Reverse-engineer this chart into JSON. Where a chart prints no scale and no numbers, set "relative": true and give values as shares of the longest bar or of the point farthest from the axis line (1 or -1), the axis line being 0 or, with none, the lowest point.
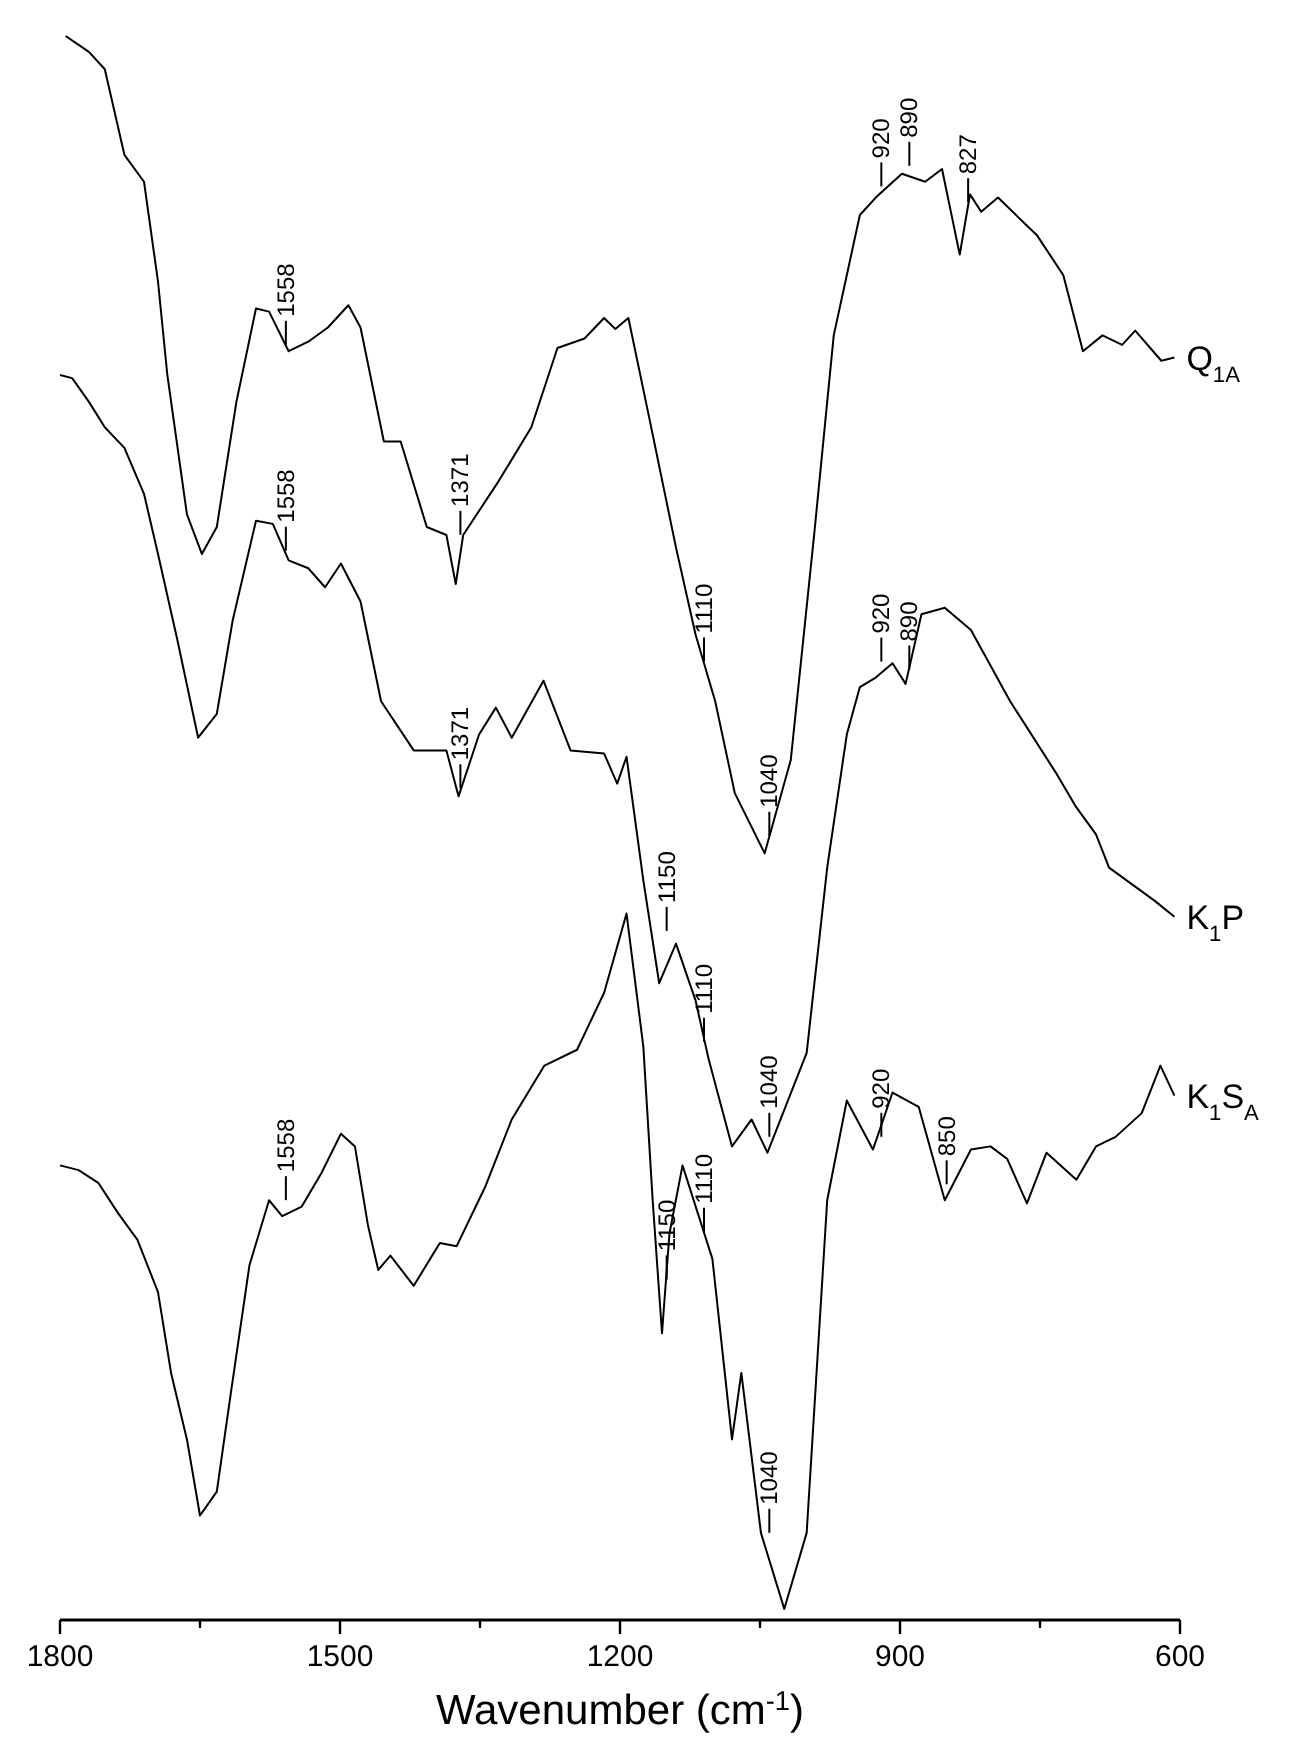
{
  "chart_data": {
    "type": "line",
    "relative": true,
    "xlabel": "Wavenumber (cm$^{-1}$)",
    "xlim": [
      1800,
      600
    ],
    "xticks": [
      1800,
      {
        "value": 1650,
        "label": null
      },
      1500,
      {
        "value": 1350,
        "label": null
      },
      1200,
      {
        "value": 1050,
        "label": null
      },
      900,
      {
        "value": 750,
        "label": null
      },
      600
    ],
    "grid": false,
    "marker": "none",
    "line_style": "solid",
    "series": [
      {
        "name": "Q$_{1A}$",
        "color": "#000000",
        "x": [
          1794,
          1769,
          1752,
          1731,
          1710,
          1695,
          1685,
          1664,
          1648,
          1632,
          1611,
          1590,
          1576,
          1555,
          1534,
          1513,
          1491,
          1478,
          1453,
          1435,
          1407,
          1386,
          1376,
          1368,
          1330,
          1295,
          1267,
          1238,
          1217,
          1205,
          1191,
          1168,
          1140,
          1119,
          1098,
          1077,
          1045,
          1017,
          992,
          971,
          943,
          926,
          898,
          873,
          855,
          836,
          825,
          813,
          795,
          753,
          725,
          704,
          683,
          662,
          648,
          620,
          606
        ],
        "values": [
          1.0,
          0.99,
          0.979,
          0.925,
          0.908,
          0.845,
          0.786,
          0.698,
          0.673,
          0.69,
          0.769,
          0.828,
          0.826,
          0.801,
          0.807,
          0.816,
          0.83,
          0.816,
          0.744,
          0.744,
          0.69,
          0.685,
          0.654,
          0.685,
          0.719,
          0.753,
          0.803,
          0.809,
          0.822,
          0.815,
          0.822,
          0.757,
          0.677,
          0.622,
          0.58,
          0.522,
          0.484,
          0.543,
          0.685,
          0.811,
          0.887,
          0.898,
          0.913,
          0.908,
          0.916,
          0.862,
          0.9,
          0.889,
          0.898,
          0.874,
          0.849,
          0.801,
          0.811,
          0.805,
          0.814,
          0.795,
          0.797
        ]
      },
      {
        "name": "K$_{1}$P",
        "color": "#000000",
        "x": [
          1800,
          1787,
          1769,
          1752,
          1731,
          1710,
          1695,
          1674,
          1652,
          1632,
          1615,
          1590,
          1572,
          1555,
          1534,
          1516,
          1499,
          1478,
          1456,
          1421,
          1386,
          1373,
          1351,
          1333,
          1316,
          1282,
          1253,
          1217,
          1203,
          1193,
          1175,
          1158,
          1140,
          1119,
          1105,
          1080,
          1059,
          1042,
          1000,
          978,
          957,
          943,
          926,
          908,
          894,
          877,
          852,
          824,
          782,
          732,
          711,
          690,
          676,
          648,
          627,
          606
        ],
        "values": [
          0.786,
          0.784,
          0.769,
          0.753,
          0.74,
          0.711,
          0.673,
          0.618,
          0.557,
          0.572,
          0.631,
          0.694,
          0.692,
          0.669,
          0.664,
          0.652,
          0.667,
          0.643,
          0.58,
          0.549,
          0.549,
          0.52,
          0.559,
          0.576,
          0.557,
          0.593,
          0.549,
          0.547,
          0.528,
          0.545,
          0.467,
          0.402,
          0.427,
          0.391,
          0.354,
          0.299,
          0.316,
          0.295,
          0.358,
          0.475,
          0.559,
          0.589,
          0.595,
          0.604,
          0.591,
          0.635,
          0.639,
          0.625,
          0.58,
          0.534,
          0.513,
          0.496,
          0.475,
          0.463,
          0.454,
          0.444
        ]
      },
      {
        "name": "K$_{1}$S$_{A}$",
        "color": "#000000",
        "x": [
          1800,
          1780,
          1759,
          1738,
          1717,
          1695,
          1681,
          1664,
          1650,
          1632,
          1618,
          1597,
          1576,
          1562,
          1541,
          1520,
          1499,
          1484,
          1470,
          1459,
          1446,
          1421,
          1393,
          1375,
          1344,
          1316,
          1281,
          1246,
          1217,
          1193,
          1175,
          1165,
          1155,
          1147,
          1133,
          1101,
          1080,
          1070,
          1049,
          1024,
          1000,
          978,
          957,
          929,
          908,
          880,
          852,
          824,
          803,
          785,
          764,
          743,
          711,
          690,
          669,
          641,
          621,
          606
        ],
        "values": [
          0.287,
          0.284,
          0.276,
          0.257,
          0.24,
          0.207,
          0.156,
          0.114,
          0.066,
          0.081,
          0.139,
          0.224,
          0.265,
          0.255,
          0.261,
          0.282,
          0.307,
          0.299,
          0.249,
          0.221,
          0.23,
          0.211,
          0.238,
          0.236,
          0.274,
          0.316,
          0.35,
          0.36,
          0.396,
          0.446,
          0.362,
          0.265,
          0.181,
          0.244,
          0.287,
          0.228,
          0.114,
          0.156,
          0.055,
          0.007,
          0.055,
          0.265,
          0.328,
          0.297,
          0.333,
          0.324,
          0.265,
          0.297,
          0.299,
          0.291,
          0.263,
          0.295,
          0.278,
          0.299,
          0.305,
          0.32,
          0.35,
          0.331
        ]
      }
    ],
    "annotations": [
      {
        "text": "1558",
        "x": 1558,
        "y": 0.8
      },
      {
        "text": "1371",
        "x": 1371,
        "y": 0.68
      },
      {
        "text": "920",
        "x": 920,
        "y": 0.9
      },
      {
        "text": "890",
        "x": 890,
        "y": 0.913
      },
      {
        "text": "827",
        "x": 827,
        "y": 0.89
      },
      {
        "text": "1110",
        "x": 1110,
        "y": 0.6
      },
      {
        "text": "1040",
        "x": 1040,
        "y": 0.49
      },
      {
        "text": "1558",
        "x": 1558,
        "y": 0.67
      },
      {
        "text": "1371",
        "x": 1371,
        "y": 0.52
      },
      {
        "text": "920",
        "x": 920,
        "y": 0.6
      },
      {
        "text": "890",
        "x": 890,
        "y": 0.595
      },
      {
        "text": "1150",
        "x": 1150,
        "y": 0.43
      },
      {
        "text": "1110",
        "x": 1110,
        "y": 0.36
      },
      {
        "text": "1040",
        "x": 1040,
        "y": 0.3
      },
      {
        "text": "1558",
        "x": 1558,
        "y": 0.26
      },
      {
        "text": "1150",
        "x": 1150,
        "y": 0.21
      },
      {
        "text": "1110",
        "x": 1110,
        "y": 0.24
      },
      {
        "text": "1040",
        "x": 1040,
        "y": 0.05
      },
      {
        "text": "920",
        "x": 920,
        "y": 0.3
      },
      {
        "text": "850",
        "x": 850,
        "y": 0.27
      }
    ]
  }
}
